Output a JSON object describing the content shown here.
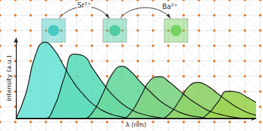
{
  "chart_data": {
    "type": "area",
    "x_label": "λ (nm)",
    "y_label": "intensity (a.u.)",
    "annotations": [
      "Sr²⁺",
      "Ba²⁺"
    ],
    "x": [
      0,
      4,
      8,
      12,
      16,
      20,
      24,
      28,
      32,
      36,
      40,
      44,
      48,
      52,
      56,
      60,
      64,
      68,
      72,
      76,
      80,
      84,
      88,
      92,
      96,
      100
    ],
    "series": [
      {
        "color": "#6fe3d6",
        "values": [
          0,
          30,
          78,
          95,
          85,
          65,
          45,
          30,
          18,
          10,
          5,
          2,
          0,
          0,
          0,
          0,
          0,
          0,
          0,
          0,
          0,
          0,
          0,
          0,
          0,
          0
        ]
      },
      {
        "color": "#5fdcbc",
        "values": [
          0,
          0,
          0,
          0,
          15,
          50,
          80,
          78,
          62,
          45,
          30,
          19,
          11,
          6,
          3,
          1,
          0,
          0,
          0,
          0,
          0,
          0,
          0,
          0,
          0,
          0
        ]
      },
      {
        "color": "#6ad8a0",
        "values": [
          0,
          0,
          0,
          0,
          0,
          0,
          0,
          0,
          8,
          30,
          55,
          65,
          58,
          45,
          33,
          22,
          14,
          8,
          4,
          2,
          0,
          0,
          0,
          0,
          0,
          0
        ]
      },
      {
        "color": "#7fd585",
        "values": [
          0,
          0,
          0,
          0,
          0,
          0,
          0,
          0,
          0,
          0,
          0,
          0,
          8,
          28,
          48,
          52,
          45,
          35,
          25,
          17,
          10,
          6,
          3,
          1,
          0,
          0
        ]
      },
      {
        "color": "#8fd36a",
        "values": [
          0,
          0,
          0,
          0,
          0,
          0,
          0,
          0,
          0,
          0,
          0,
          0,
          0,
          0,
          0,
          0,
          6,
          22,
          40,
          45,
          40,
          31,
          22,
          14,
          8,
          4
        ]
      },
      {
        "color": "#9ed455",
        "values": [
          0,
          0,
          0,
          0,
          0,
          0,
          0,
          0,
          0,
          0,
          0,
          0,
          0,
          0,
          0,
          0,
          0,
          0,
          0,
          0,
          6,
          20,
          34,
          33,
          27,
          20
        ]
      }
    ],
    "xlim": [
      0,
      100
    ],
    "ylim": [
      0,
      100
    ],
    "grid": false,
    "tick_labels": false
  }
}
